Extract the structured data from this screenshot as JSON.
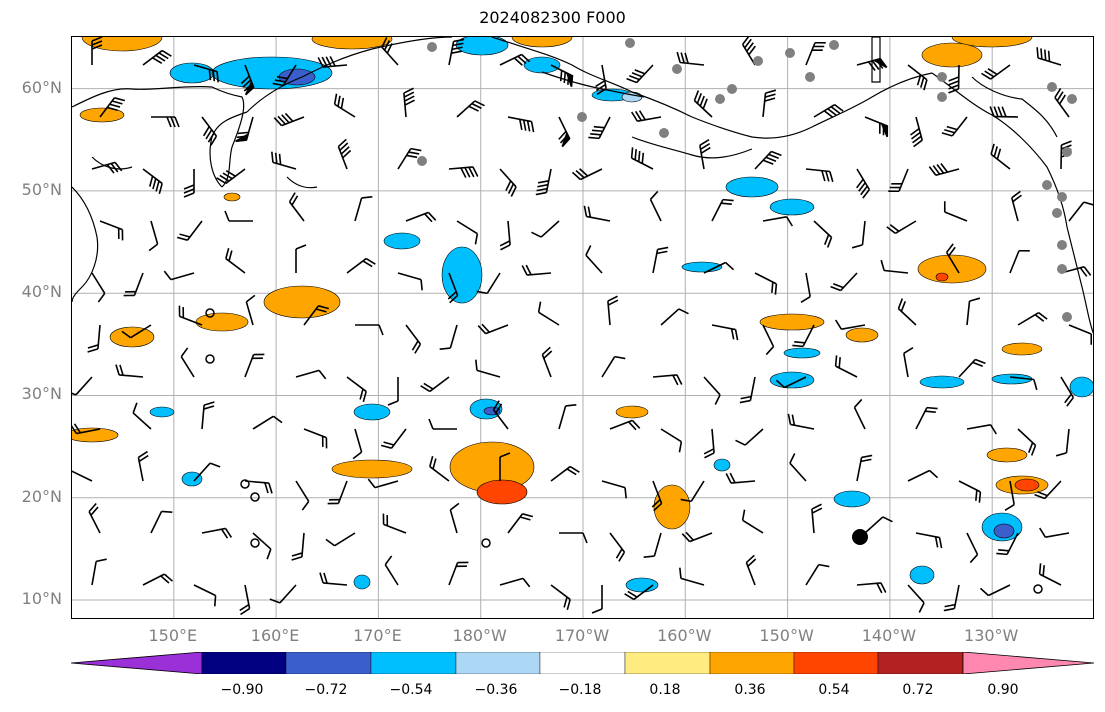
{
  "title": "2024082300 F000",
  "lat_labels": [
    "60°N",
    "50°N",
    "40°N",
    "30°N",
    "20°N",
    "10°N"
  ],
  "lon_labels": [
    "150°E",
    "160°E",
    "170°E",
    "180°W",
    "170°W",
    "160°W",
    "150°W",
    "140°W",
    "130°W"
  ],
  "colorbar": {
    "ticks": [
      "−0.90",
      "−0.72",
      "−0.54",
      "−0.36",
      "−0.18",
      "0.18",
      "0.36",
      "0.54",
      "0.72",
      "0.90"
    ],
    "colors": [
      "#9b30d9",
      "#000080",
      "#3a5fcd",
      "#00bfff",
      "#add8f5",
      "#ffffff",
      "#ffeb80",
      "#ffa500",
      "#ff4500",
      "#b22222",
      "#ff88b0"
    ]
  },
  "map": {
    "projection": "PlateCarree",
    "extent_lon": [
      140,
      240
    ],
    "extent_lat": [
      8,
      65
    ],
    "gridlines": true,
    "land_colors": {
      "coast": "#000000",
      "stations": "#808080",
      "marker": "#000000"
    }
  }
}
